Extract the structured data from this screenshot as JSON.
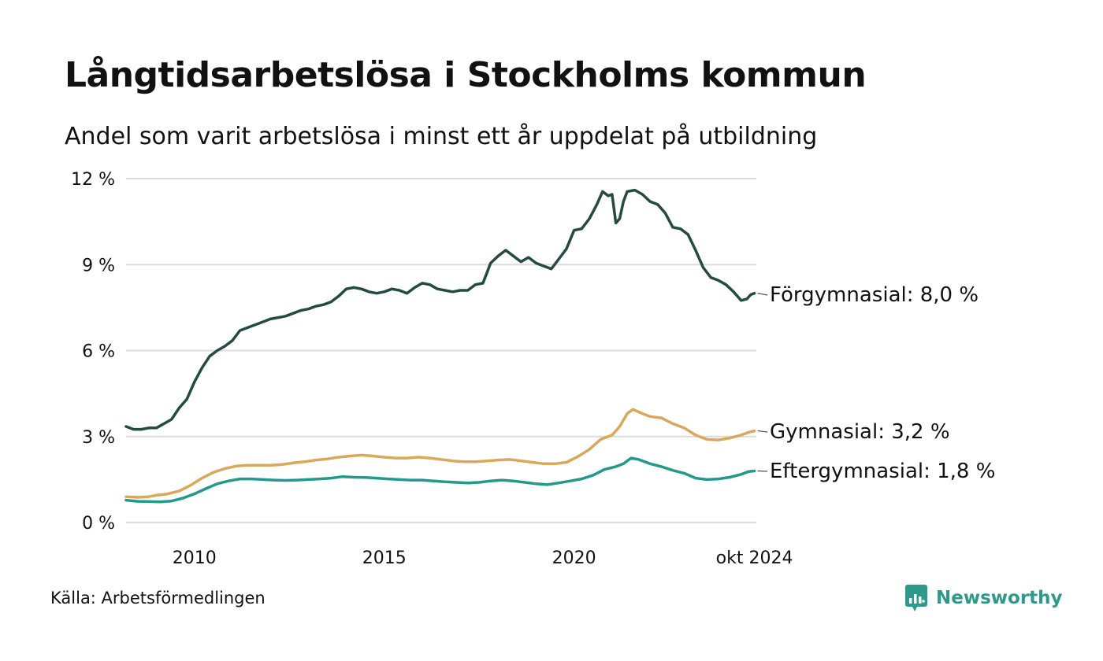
{
  "title": "Långtidsarbetslösa i Stockholms kommun",
  "subtitle": "Andel som varit arbetslösa i minst ett år uppdelat på utbildning",
  "source": "Källa: Arbetsförmedlingen",
  "brand": "Newsworthy",
  "brand_color": "#2b9a8a",
  "chart_data": {
    "type": "line",
    "xlim": [
      2008.2,
      2024.8
    ],
    "ylim": [
      0,
      12
    ],
    "y_ticks": [
      {
        "value": 0,
        "label": "0 %"
      },
      {
        "value": 3,
        "label": "3 %"
      },
      {
        "value": 6,
        "label": "6 %"
      },
      {
        "value": 9,
        "label": "9 %"
      },
      {
        "value": 12,
        "label": "12 %"
      }
    ],
    "x_ticks": [
      {
        "value": 2010,
        "label": "2010"
      },
      {
        "value": 2015,
        "label": "2015"
      },
      {
        "value": 2020,
        "label": "2020"
      },
      {
        "value": 2024.75,
        "label": "okt 2024"
      }
    ],
    "grid": true,
    "series": [
      {
        "name": "Förgymnasial",
        "end_label": "Förgymnasial: 8,0 %",
        "color": "#244a44",
        "points": [
          [
            2008.2,
            3.35
          ],
          [
            2008.4,
            3.25
          ],
          [
            2008.6,
            3.25
          ],
          [
            2008.8,
            3.3
          ],
          [
            2009.0,
            3.3
          ],
          [
            2009.2,
            3.45
          ],
          [
            2009.4,
            3.6
          ],
          [
            2009.6,
            4.0
          ],
          [
            2009.8,
            4.3
          ],
          [
            2010.0,
            4.9
          ],
          [
            2010.2,
            5.4
          ],
          [
            2010.4,
            5.8
          ],
          [
            2010.6,
            6.0
          ],
          [
            2010.8,
            6.15
          ],
          [
            2011.0,
            6.35
          ],
          [
            2011.2,
            6.7
          ],
          [
            2011.4,
            6.8
          ],
          [
            2011.6,
            6.9
          ],
          [
            2011.8,
            7.0
          ],
          [
            2012.0,
            7.1
          ],
          [
            2012.2,
            7.15
          ],
          [
            2012.4,
            7.2
          ],
          [
            2012.6,
            7.3
          ],
          [
            2012.8,
            7.4
          ],
          [
            2013.0,
            7.45
          ],
          [
            2013.2,
            7.55
          ],
          [
            2013.4,
            7.6
          ],
          [
            2013.6,
            7.7
          ],
          [
            2013.8,
            7.9
          ],
          [
            2014.0,
            8.15
          ],
          [
            2014.2,
            8.2
          ],
          [
            2014.4,
            8.15
          ],
          [
            2014.6,
            8.05
          ],
          [
            2014.8,
            8.0
          ],
          [
            2015.0,
            8.05
          ],
          [
            2015.2,
            8.15
          ],
          [
            2015.4,
            8.1
          ],
          [
            2015.6,
            8.0
          ],
          [
            2015.8,
            8.2
          ],
          [
            2016.0,
            8.35
          ],
          [
            2016.2,
            8.3
          ],
          [
            2016.4,
            8.15
          ],
          [
            2016.6,
            8.1
          ],
          [
            2016.8,
            8.05
          ],
          [
            2017.0,
            8.1
          ],
          [
            2017.2,
            8.1
          ],
          [
            2017.4,
            8.3
          ],
          [
            2017.6,
            8.35
          ],
          [
            2017.8,
            9.05
          ],
          [
            2018.0,
            9.3
          ],
          [
            2018.2,
            9.5
          ],
          [
            2018.4,
            9.3
          ],
          [
            2018.6,
            9.1
          ],
          [
            2018.8,
            9.25
          ],
          [
            2019.0,
            9.05
          ],
          [
            2019.2,
            8.95
          ],
          [
            2019.4,
            8.85
          ],
          [
            2019.6,
            9.2
          ],
          [
            2019.8,
            9.55
          ],
          [
            2020.0,
            10.2
          ],
          [
            2020.2,
            10.25
          ],
          [
            2020.4,
            10.6
          ],
          [
            2020.6,
            11.1
          ],
          [
            2020.75,
            11.55
          ],
          [
            2020.9,
            11.4
          ],
          [
            2021.0,
            11.45
          ],
          [
            2021.1,
            10.45
          ],
          [
            2021.2,
            10.6
          ],
          [
            2021.3,
            11.2
          ],
          [
            2021.4,
            11.55
          ],
          [
            2021.6,
            11.6
          ],
          [
            2021.8,
            11.45
          ],
          [
            2022.0,
            11.2
          ],
          [
            2022.2,
            11.1
          ],
          [
            2022.4,
            10.8
          ],
          [
            2022.6,
            10.3
          ],
          [
            2022.8,
            10.25
          ],
          [
            2023.0,
            10.05
          ],
          [
            2023.2,
            9.5
          ],
          [
            2023.4,
            8.9
          ],
          [
            2023.6,
            8.55
          ],
          [
            2023.8,
            8.45
          ],
          [
            2024.0,
            8.3
          ],
          [
            2024.2,
            8.05
          ],
          [
            2024.4,
            7.75
          ],
          [
            2024.55,
            7.8
          ],
          [
            2024.65,
            7.95
          ],
          [
            2024.75,
            8.0
          ]
        ]
      },
      {
        "name": "Gymnasial",
        "end_label": "Gymnasial: 3,2 %",
        "color": "#d9a85a",
        "points": [
          [
            2008.2,
            0.9
          ],
          [
            2008.5,
            0.88
          ],
          [
            2008.8,
            0.9
          ],
          [
            2009.0,
            0.95
          ],
          [
            2009.3,
            1.0
          ],
          [
            2009.6,
            1.1
          ],
          [
            2009.9,
            1.3
          ],
          [
            2010.2,
            1.55
          ],
          [
            2010.5,
            1.75
          ],
          [
            2010.8,
            1.88
          ],
          [
            2011.1,
            1.97
          ],
          [
            2011.4,
            2.0
          ],
          [
            2011.7,
            2.0
          ],
          [
            2012.0,
            2.0
          ],
          [
            2012.3,
            2.02
          ],
          [
            2012.6,
            2.08
          ],
          [
            2012.9,
            2.12
          ],
          [
            2013.2,
            2.18
          ],
          [
            2013.5,
            2.22
          ],
          [
            2013.8,
            2.28
          ],
          [
            2014.1,
            2.32
          ],
          [
            2014.4,
            2.35
          ],
          [
            2014.7,
            2.32
          ],
          [
            2015.0,
            2.28
          ],
          [
            2015.3,
            2.25
          ],
          [
            2015.6,
            2.25
          ],
          [
            2015.9,
            2.28
          ],
          [
            2016.2,
            2.25
          ],
          [
            2016.5,
            2.2
          ],
          [
            2016.8,
            2.15
          ],
          [
            2017.1,
            2.12
          ],
          [
            2017.4,
            2.12
          ],
          [
            2017.7,
            2.15
          ],
          [
            2018.0,
            2.18
          ],
          [
            2018.3,
            2.2
          ],
          [
            2018.6,
            2.15
          ],
          [
            2018.9,
            2.1
          ],
          [
            2019.2,
            2.05
          ],
          [
            2019.5,
            2.05
          ],
          [
            2019.8,
            2.1
          ],
          [
            2020.1,
            2.3
          ],
          [
            2020.4,
            2.55
          ],
          [
            2020.7,
            2.9
          ],
          [
            2021.0,
            3.05
          ],
          [
            2021.2,
            3.35
          ],
          [
            2021.4,
            3.8
          ],
          [
            2021.55,
            3.95
          ],
          [
            2021.8,
            3.8
          ],
          [
            2022.0,
            3.7
          ],
          [
            2022.3,
            3.65
          ],
          [
            2022.6,
            3.45
          ],
          [
            2022.9,
            3.3
          ],
          [
            2023.2,
            3.05
          ],
          [
            2023.5,
            2.9
          ],
          [
            2023.8,
            2.88
          ],
          [
            2024.1,
            2.95
          ],
          [
            2024.4,
            3.05
          ],
          [
            2024.6,
            3.15
          ],
          [
            2024.75,
            3.2
          ]
        ]
      },
      {
        "name": "Eftergymnasial",
        "end_label": "Eftergymnasial: 1,8 %",
        "color": "#23998a",
        "points": [
          [
            2008.2,
            0.78
          ],
          [
            2008.5,
            0.74
          ],
          [
            2008.8,
            0.73
          ],
          [
            2009.1,
            0.72
          ],
          [
            2009.4,
            0.75
          ],
          [
            2009.7,
            0.85
          ],
          [
            2010.0,
            1.0
          ],
          [
            2010.3,
            1.18
          ],
          [
            2010.6,
            1.35
          ],
          [
            2010.9,
            1.45
          ],
          [
            2011.2,
            1.52
          ],
          [
            2011.5,
            1.52
          ],
          [
            2011.8,
            1.5
          ],
          [
            2012.1,
            1.48
          ],
          [
            2012.4,
            1.47
          ],
          [
            2012.7,
            1.48
          ],
          [
            2013.0,
            1.5
          ],
          [
            2013.3,
            1.52
          ],
          [
            2013.6,
            1.55
          ],
          [
            2013.9,
            1.6
          ],
          [
            2014.2,
            1.58
          ],
          [
            2014.5,
            1.57
          ],
          [
            2014.8,
            1.55
          ],
          [
            2015.1,
            1.52
          ],
          [
            2015.4,
            1.5
          ],
          [
            2015.7,
            1.48
          ],
          [
            2016.0,
            1.48
          ],
          [
            2016.3,
            1.45
          ],
          [
            2016.6,
            1.42
          ],
          [
            2016.9,
            1.4
          ],
          [
            2017.2,
            1.38
          ],
          [
            2017.5,
            1.4
          ],
          [
            2017.8,
            1.45
          ],
          [
            2018.1,
            1.48
          ],
          [
            2018.4,
            1.45
          ],
          [
            2018.7,
            1.4
          ],
          [
            2019.0,
            1.35
          ],
          [
            2019.3,
            1.32
          ],
          [
            2019.6,
            1.38
          ],
          [
            2019.9,
            1.45
          ],
          [
            2020.2,
            1.52
          ],
          [
            2020.5,
            1.65
          ],
          [
            2020.8,
            1.85
          ],
          [
            2021.1,
            1.95
          ],
          [
            2021.3,
            2.05
          ],
          [
            2021.5,
            2.25
          ],
          [
            2021.7,
            2.2
          ],
          [
            2022.0,
            2.05
          ],
          [
            2022.3,
            1.95
          ],
          [
            2022.6,
            1.82
          ],
          [
            2022.9,
            1.72
          ],
          [
            2023.2,
            1.55
          ],
          [
            2023.5,
            1.5
          ],
          [
            2023.8,
            1.52
          ],
          [
            2024.1,
            1.58
          ],
          [
            2024.4,
            1.68
          ],
          [
            2024.6,
            1.78
          ],
          [
            2024.75,
            1.8
          ]
        ]
      }
    ]
  }
}
